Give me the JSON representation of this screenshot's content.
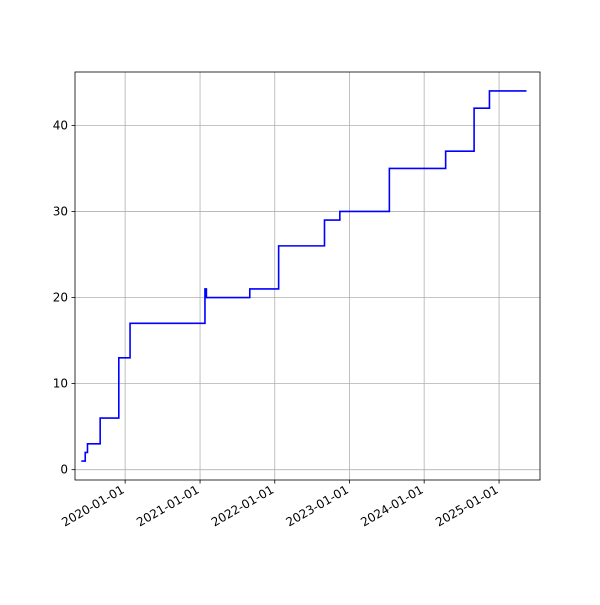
{
  "chart_data": {
    "type": "line",
    "title": "",
    "xlabel": "",
    "ylabel": "",
    "x_ticks": [
      "2020-01-01",
      "2021-01-01",
      "2022-01-01",
      "2023-01-01",
      "2024-01-01",
      "2025-01-01"
    ],
    "y_ticks": [
      0,
      10,
      20,
      30,
      40
    ],
    "xlim": [
      "2019-05-01",
      "2025-07-20"
    ],
    "ylim": [
      -1.2,
      46.2
    ],
    "grid": true,
    "series": [
      {
        "color": "#0000ff",
        "step": "post",
        "points": [
          [
            "2019-06-01",
            1
          ],
          [
            "2019-06-20",
            2
          ],
          [
            "2019-07-01",
            3
          ],
          [
            "2019-09-01",
            6
          ],
          [
            "2019-12-01",
            13
          ],
          [
            "2020-01-25",
            17
          ],
          [
            "2021-01-25",
            21
          ],
          [
            "2021-02-01",
            20
          ],
          [
            "2021-09-01",
            21
          ],
          [
            "2022-01-20",
            26
          ],
          [
            "2022-09-01",
            29
          ],
          [
            "2022-11-15",
            30
          ],
          [
            "2023-07-15",
            35
          ],
          [
            "2024-04-15",
            37
          ],
          [
            "2024-09-01",
            42
          ],
          [
            "2024-11-15",
            44
          ],
          [
            "2025-05-15",
            44
          ]
        ]
      }
    ]
  }
}
